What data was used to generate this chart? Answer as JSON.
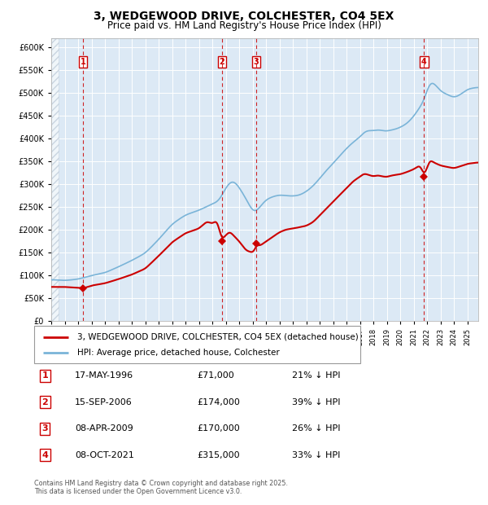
{
  "title": "3, WEDGEWOOD DRIVE, COLCHESTER, CO4 5EX",
  "subtitle": "Price paid vs. HM Land Registry's House Price Index (HPI)",
  "title_fontsize": 10,
  "subtitle_fontsize": 8.5,
  "plot_bg_color": "#dce9f5",
  "fig_bg_color": "#ffffff",
  "red_line_color": "#cc0000",
  "blue_line_color": "#7ab4d8",
  "ylim": [
    0,
    620000
  ],
  "yticks": [
    0,
    50000,
    100000,
    150000,
    200000,
    250000,
    300000,
    350000,
    400000,
    450000,
    500000,
    550000,
    600000
  ],
  "transactions": [
    {
      "num": 1,
      "price": 71000,
      "x_year": 1996.38
    },
    {
      "num": 2,
      "price": 174000,
      "x_year": 2006.71
    },
    {
      "num": 3,
      "price": 170000,
      "x_year": 2009.27
    },
    {
      "num": 4,
      "price": 315000,
      "x_year": 2021.77
    }
  ],
  "legend_entries": [
    "3, WEDGEWOOD DRIVE, COLCHESTER, CO4 5EX (detached house)",
    "HPI: Average price, detached house, Colchester"
  ],
  "table_rows": [
    {
      "num": "1",
      "date": "17-MAY-1996",
      "price": "£71,000",
      "note": "21% ↓ HPI"
    },
    {
      "num": "2",
      "date": "15-SEP-2006",
      "price": "£174,000",
      "note": "39% ↓ HPI"
    },
    {
      "num": "3",
      "date": "08-APR-2009",
      "price": "£170,000",
      "note": "26% ↓ HPI"
    },
    {
      "num": "4",
      "date": "08-OCT-2021",
      "price": "£315,000",
      "note": "33% ↓ HPI"
    }
  ],
  "footer": "Contains HM Land Registry data © Crown copyright and database right 2025.\nThis data is licensed under the Open Government Licence v3.0.",
  "xmin": 1994.0,
  "xmax": 2025.8
}
